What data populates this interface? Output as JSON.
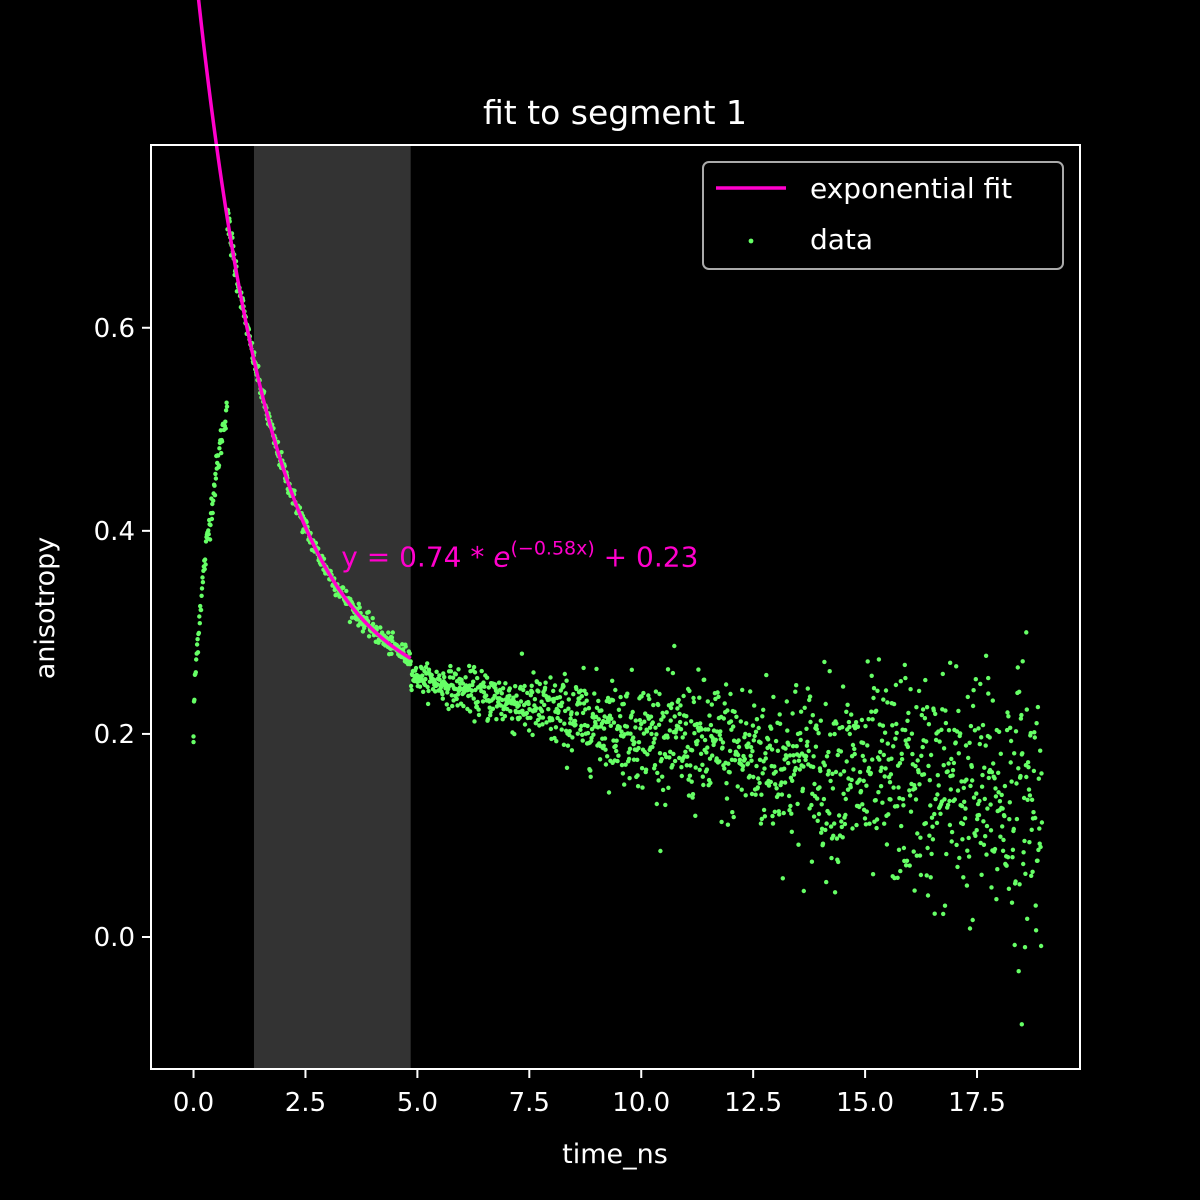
{
  "colors": {
    "background": "#000000",
    "axes": "#ffffff",
    "fit": "#ff00cc",
    "data": "#66ff66",
    "shade": "#333333"
  },
  "chart_data": {
    "type": "scatter",
    "title": "fit to segment 1",
    "xlabel": "time_ns",
    "ylabel": "anisotropy",
    "xlim": [
      -0.95,
      19.8
    ],
    "ylim": [
      -0.13,
      0.78
    ],
    "xticks": [
      0.0,
      2.5,
      5.0,
      7.5,
      10.0,
      12.5,
      15.0,
      17.5
    ],
    "xtick_labels": [
      "0.0",
      "2.5",
      "5.0",
      "7.5",
      "10.0",
      "12.5",
      "15.0",
      "17.5"
    ],
    "yticks": [
      0.0,
      0.2,
      0.4,
      0.6
    ],
    "ytick_labels": [
      "0.0",
      "0.2",
      "0.4",
      "0.6"
    ],
    "grid": false,
    "legend_position": "top-right",
    "shaded_region": [
      1.35,
      4.85
    ],
    "annotation": {
      "prefix": "y = 0.74 * ",
      "base": "e",
      "exponent": "(−0.58x)",
      "suffix": " + 0.23",
      "x": 3.3,
      "y": 0.365
    },
    "fit": {
      "name": "exponential fit",
      "a": 0.74,
      "k": 0.58,
      "c": 0.23,
      "x_range": [
        0.0,
        4.85
      ]
    },
    "data_series": {
      "name": "data",
      "x_range": [
        0.0,
        18.95
      ],
      "n_points": 1900,
      "rise_peak": [
        0.75,
        0.525
      ],
      "outliers": [
        [
          0.0,
          0.192
        ],
        [
          18.6,
          0.3
        ],
        [
          18.5,
          -0.086
        ],
        [
          15.9,
          0.255
        ],
        [
          17.75,
          0.255
        ],
        [
          16.9,
          0.27
        ]
      ]
    }
  }
}
